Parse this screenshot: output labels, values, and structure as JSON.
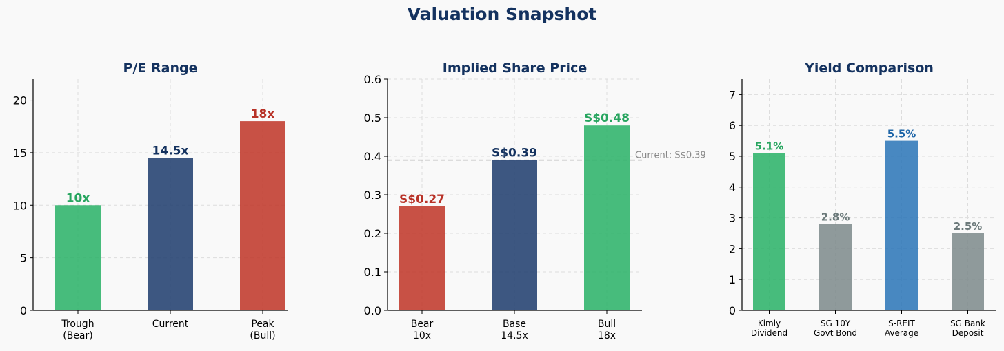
{
  "suptitle": "Valuation Snapshot",
  "colors": {
    "title": "#14325f",
    "green": "#2eb36a",
    "navy": "#22406f",
    "red": "#c0392b",
    "blue": "#2f78b8",
    "gray": "#7f8c8d"
  },
  "chart_data": [
    {
      "type": "bar",
      "title": "P/E Range",
      "categories": [
        "Trough\n(Bear)",
        "Current",
        "Peak\n(Bull)"
      ],
      "values": [
        10,
        14.5,
        18
      ],
      "labels": [
        "10x",
        "14.5x",
        "18x"
      ],
      "bar_colors": [
        "#2eb36a",
        "#22406f",
        "#c0392b"
      ],
      "label_colors": [
        "#27a55f",
        "#14325f",
        "#b83227"
      ],
      "ylim": [
        0,
        22
      ],
      "yticks": [
        0,
        5,
        10,
        15,
        20
      ],
      "ytick_labels": [
        "0",
        "5",
        "10",
        "15",
        "20"
      ],
      "grid": true
    },
    {
      "type": "bar",
      "title": "Implied Share Price",
      "categories": [
        "Bear\n10x",
        "Base\n14.5x",
        "Bull\n18x"
      ],
      "values": [
        0.27,
        0.39,
        0.48
      ],
      "labels": [
        "S$0.27",
        "S$0.39",
        "S$0.48"
      ],
      "bar_colors": [
        "#c0392b",
        "#22406f",
        "#2eb36a"
      ],
      "label_colors": [
        "#b83227",
        "#14325f",
        "#27a55f"
      ],
      "ylim": [
        0,
        0.6
      ],
      "yticks": [
        0,
        0.1,
        0.2,
        0.3,
        0.4,
        0.5,
        0.6
      ],
      "ytick_labels": [
        "0.0",
        "0.1",
        "0.2",
        "0.3",
        "0.4",
        "0.5",
        "0.6"
      ],
      "grid": true,
      "reference_line": {
        "value": 0.39,
        "label": "Current: S$0.39"
      }
    },
    {
      "type": "bar",
      "title": "Yield Comparison",
      "categories": [
        "Kimly\nDividend",
        "SG 10Y\nGovt Bond",
        "S-REIT\nAverage",
        "SG Bank\nDeposit"
      ],
      "values": [
        5.1,
        2.8,
        5.5,
        2.5
      ],
      "labels": [
        "5.1%",
        "2.8%",
        "5.5%",
        "2.5%"
      ],
      "bar_colors": [
        "#2eb36a",
        "#7f8c8d",
        "#2f78b8",
        "#7f8c8d"
      ],
      "label_colors": [
        "#27a55f",
        "#6c7a7b",
        "#1f66a8",
        "#6c7a7b"
      ],
      "ylim": [
        0,
        7.5
      ],
      "yticks": [
        0,
        1,
        2,
        3,
        4,
        5,
        6,
        7
      ],
      "ytick_labels": [
        "0",
        "1",
        "2",
        "3",
        "4",
        "5",
        "6",
        "7"
      ],
      "grid": true
    }
  ]
}
